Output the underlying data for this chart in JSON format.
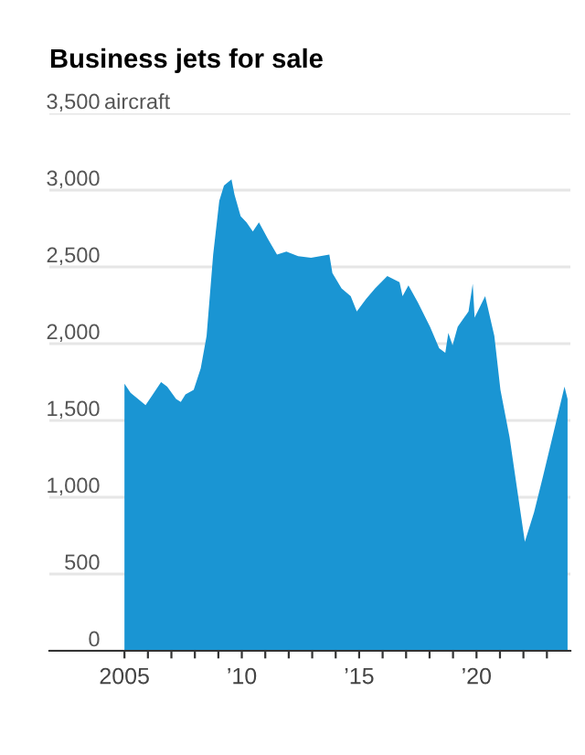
{
  "chart_data": {
    "type": "area",
    "title": "Business jets for sale",
    "ylabel": "aircraft",
    "series": [
      {
        "color": "#1a95d3",
        "x": [
          2005.0,
          2005.26,
          2005.9,
          2006.17,
          2006.56,
          2006.82,
          2007.2,
          2007.4,
          2007.6,
          2007.95,
          2008.25,
          2008.5,
          2008.78,
          2009.04,
          2009.24,
          2009.56,
          2009.69,
          2009.95,
          2010.2,
          2010.47,
          2010.73,
          2011.12,
          2011.5,
          2011.9,
          2012.4,
          2012.95,
          2013.73,
          2013.86,
          2014.25,
          2014.64,
          2014.9,
          2015.29,
          2015.68,
          2016.2,
          2016.72,
          2016.85,
          2017.1,
          2017.5,
          2018.02,
          2018.41,
          2018.67,
          2018.8,
          2018.98,
          2019.2,
          2019.66,
          2019.84,
          2019.92,
          2020.37,
          2020.76,
          2021.02,
          2021.41,
          2021.8,
          2022.06,
          2022.45,
          2022.84,
          2023.36,
          2023.75,
          2023.88
        ],
        "values": [
          1740,
          1680,
          1600,
          1660,
          1750,
          1720,
          1640,
          1620,
          1670,
          1700,
          1840,
          2050,
          2580,
          2930,
          3030,
          3070,
          2970,
          2830,
          2790,
          2730,
          2790,
          2680,
          2580,
          2600,
          2570,
          2560,
          2580,
          2460,
          2360,
          2310,
          2210,
          2290,
          2360,
          2440,
          2400,
          2310,
          2380,
          2270,
          2110,
          1970,
          1940,
          2070,
          1990,
          2110,
          2210,
          2390,
          2170,
          2310,
          2050,
          1700,
          1390,
          980,
          710,
          900,
          1140,
          1470,
          1720,
          1640
        ]
      }
    ],
    "xlim": [
      2001.8,
      2024.0
    ],
    "ylim": [
      0,
      3500
    ],
    "xticks": [
      {
        "value": 2005,
        "label": "2005"
      },
      {
        "value": 2006,
        "label": null
      },
      {
        "value": 2007,
        "label": null
      },
      {
        "value": 2008,
        "label": null
      },
      {
        "value": 2009,
        "label": null
      },
      {
        "value": 2010,
        "label": "’10"
      },
      {
        "value": 2011,
        "label": null
      },
      {
        "value": 2012,
        "label": null
      },
      {
        "value": 2013,
        "label": null
      },
      {
        "value": 2014,
        "label": null
      },
      {
        "value": 2015,
        "label": "’15"
      },
      {
        "value": 2016,
        "label": null
      },
      {
        "value": 2017,
        "label": null
      },
      {
        "value": 2018,
        "label": null
      },
      {
        "value": 2019,
        "label": null
      },
      {
        "value": 2020,
        "label": "’20"
      },
      {
        "value": 2021,
        "label": null
      },
      {
        "value": 2022,
        "label": null
      },
      {
        "value": 2023,
        "label": null
      }
    ],
    "yticks": [
      {
        "value": 0,
        "label": "0"
      },
      {
        "value": 500,
        "label": "500"
      },
      {
        "value": 1000,
        "label": "1,000"
      },
      {
        "value": 1500,
        "label": "1,500"
      },
      {
        "value": 2000,
        "label": "2,000"
      },
      {
        "value": 2500,
        "label": "2,500"
      },
      {
        "value": 3000,
        "label": "3,000"
      },
      {
        "value": 3500,
        "label": "3,500"
      }
    ],
    "grid": "y"
  }
}
